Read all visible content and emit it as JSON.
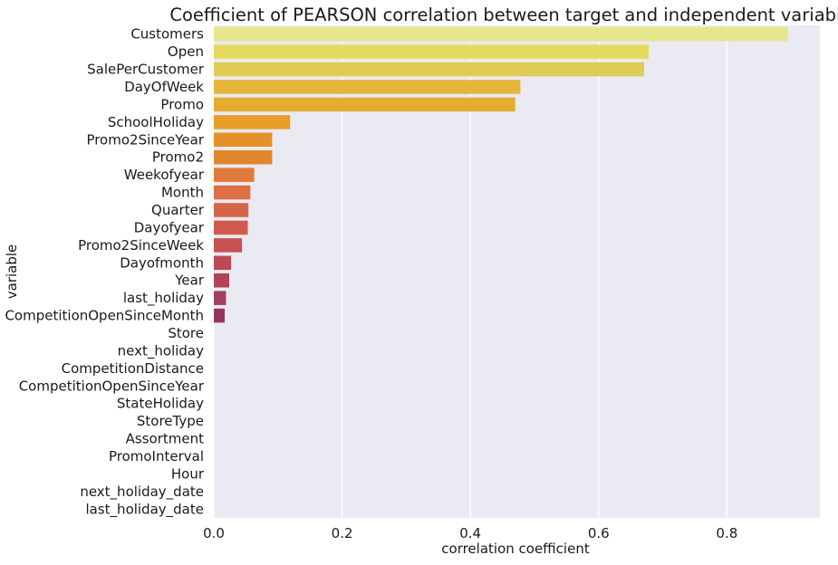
{
  "chart_data": {
    "type": "bar",
    "orientation": "horizontal",
    "title": "Coefficient of PEARSON correlation between target and independent variables",
    "xlabel": "correlation coefficient",
    "ylabel": "variable",
    "xlim": [
      0,
      0.945
    ],
    "xticks": [
      0.0,
      0.2,
      0.4,
      0.6,
      0.8
    ],
    "xtick_labels": [
      "0.0",
      "0.2",
      "0.4",
      "0.6",
      "0.8"
    ],
    "grid": true,
    "background": "#eaeaf2",
    "categories": [
      "Customers",
      "Open",
      "SalePerCustomer",
      "DayOfWeek",
      "Promo",
      "SchoolHoliday",
      "Promo2SinceYear",
      "Promo2",
      "Weekofyear",
      "Month",
      "Quarter",
      "Dayofyear",
      "Promo2SinceWeek",
      "Dayofmonth",
      "Year",
      "last_holiday",
      "CompetitionOpenSinceMonth",
      "Store",
      "next_holiday",
      "CompetitionDistance",
      "CompetitionOpenSinceYear",
      "StateHoliday",
      "StoreType",
      "Assortment",
      "PromoInterval",
      "Hour",
      "next_holiday_date",
      "last_holiday_date"
    ],
    "values": [
      0.895,
      0.678,
      0.671,
      0.478,
      0.47,
      0.119,
      0.091,
      0.091,
      0.063,
      0.057,
      0.054,
      0.053,
      0.044,
      0.027,
      0.024,
      0.019,
      0.017,
      0.0,
      0.0,
      0.0,
      0.0,
      0.0,
      0.0,
      0.0,
      0.0,
      0.0,
      0.0,
      0.0
    ],
    "colors": [
      "#e6e68c",
      "#e6da5c",
      "#e0cc55",
      "#e6b63c",
      "#e6ab32",
      "#e69e26",
      "#e6902a",
      "#e0872e",
      "#e07a3c",
      "#dc7044",
      "#d6644a",
      "#d05a4e",
      "#c65252",
      "#bc4a56",
      "#b04458",
      "#a43e5c",
      "#963660",
      "#8a3060",
      "#7e2c62",
      "#722862",
      "#662462",
      "#5a2062",
      "#4e1c60",
      "#441a5e",
      "#38185a",
      "#2e1656",
      "#241450",
      "#1c124a"
    ]
  }
}
